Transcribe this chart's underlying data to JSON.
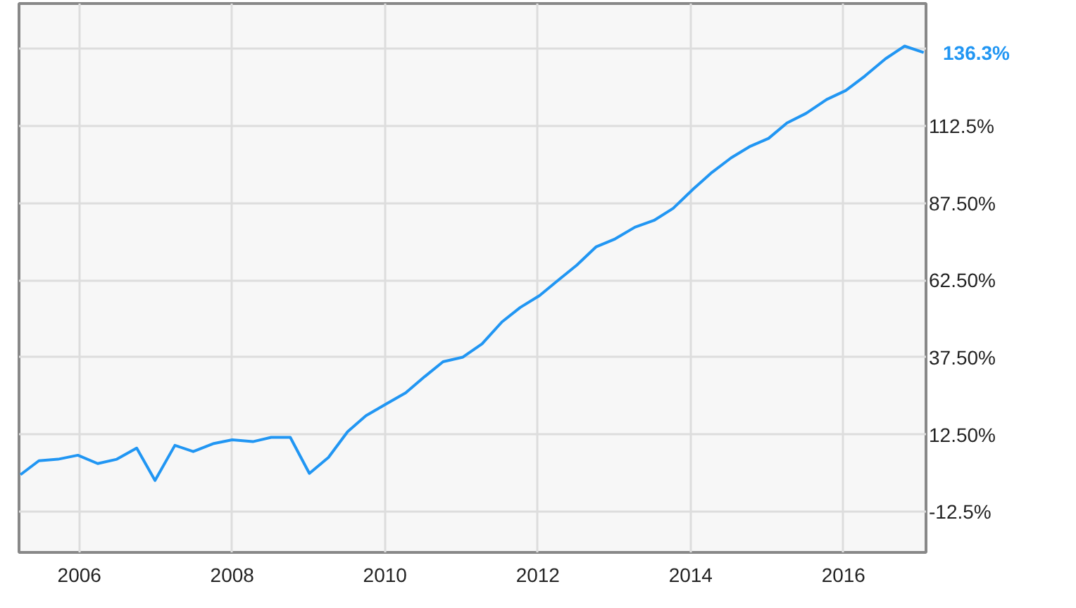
{
  "chart_data": {
    "type": "line",
    "x": [
      2005.23,
      2005.47,
      2005.72,
      2005.98,
      2006.24,
      2006.49,
      2006.75,
      2006.99,
      2007.25,
      2007.49,
      2007.76,
      2008.0,
      2008.27,
      2008.51,
      2008.76,
      2009.01,
      2009.26,
      2009.51,
      2009.75,
      2010.02,
      2010.27,
      2010.52,
      2010.76,
      2011.02,
      2011.27,
      2011.53,
      2011.77,
      2012.02,
      2012.26,
      2012.51,
      2012.76,
      2013.01,
      2013.27,
      2013.52,
      2013.77,
      2014.04,
      2014.28,
      2014.53,
      2014.77,
      2015.02,
      2015.26,
      2015.51,
      2015.78,
      2016.03,
      2016.28,
      2016.55,
      2016.8,
      2017.05
    ],
    "series": [
      {
        "color": "#2196f3",
        "values": [
          -0.5,
          4.0,
          4.5,
          5.8,
          3.1,
          4.5,
          8.1,
          -2.4,
          9.0,
          7.0,
          9.6,
          10.8,
          10.2,
          11.6,
          11.6,
          -0.1,
          5.1,
          13.4,
          18.6,
          22.5,
          26.0,
          31.3,
          36.1,
          37.6,
          41.9,
          49.0,
          53.7,
          57.5,
          62.4,
          67.4,
          73.3,
          75.9,
          79.7,
          81.9,
          85.8,
          92.2,
          97.5,
          102.2,
          105.8,
          108.5,
          113.5,
          116.6,
          121.1,
          124.0,
          128.7,
          134.3,
          138.4,
          136.3
        ],
        "value_labels": [
          null,
          null,
          null,
          null,
          null,
          null,
          null,
          null,
          null,
          null,
          null,
          null,
          null,
          null,
          null,
          null,
          null,
          null,
          null,
          null,
          null,
          null,
          null,
          null,
          null,
          null,
          null,
          null,
          null,
          null,
          null,
          null,
          null,
          null,
          null,
          null,
          null,
          null,
          null,
          null,
          null,
          null,
          null,
          null,
          null,
          null,
          null,
          "136.3%"
        ]
      }
    ],
    "xlim": [
      2005.21,
      2017.08
    ],
    "ylim": [
      -25.7,
      152.2
    ],
    "xticks": [
      2006,
      2008,
      2010,
      2012,
      2014,
      2016
    ],
    "yticks": [
      {
        "value": -12.5,
        "label": "-12.5%"
      },
      {
        "value": 12.5,
        "label": "12.50%"
      },
      {
        "value": 37.5,
        "label": "37.50%"
      },
      {
        "value": 62.5,
        "label": "62.50%"
      },
      {
        "value": 87.5,
        "label": "87.50%"
      },
      {
        "value": 112.5,
        "label": "112.5%"
      },
      {
        "value": 137.5,
        "label": null
      }
    ],
    "grid": true,
    "marker": "none",
    "line_style": "solid"
  }
}
